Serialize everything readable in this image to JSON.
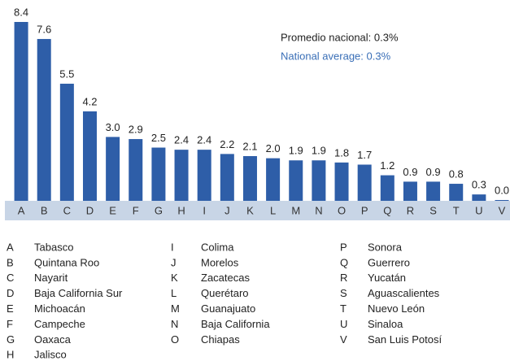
{
  "chart_data": {
    "type": "bar",
    "categories": [
      "A",
      "B",
      "C",
      "D",
      "E",
      "F",
      "G",
      "H",
      "I",
      "J",
      "K",
      "L",
      "M",
      "N",
      "O",
      "P",
      "Q",
      "R",
      "S",
      "T",
      "U",
      "V"
    ],
    "values": [
      8.4,
      7.6,
      5.5,
      4.2,
      3.0,
      2.9,
      2.5,
      2.4,
      2.4,
      2.2,
      2.1,
      2.0,
      1.9,
      1.9,
      1.8,
      1.7,
      1.2,
      0.9,
      0.9,
      0.8,
      0.3,
      0.0
    ],
    "value_labels": [
      "8.4",
      "7.6",
      "5.5",
      "4.2",
      "3.0",
      "2.9",
      "2.5",
      "2.4",
      "2.4",
      "2.2",
      "2.1",
      "2.0",
      "1.9",
      "1.9",
      "1.8",
      "1.7",
      "1.2",
      "0.9",
      "0.9",
      "0.8",
      "0.3",
      "0.0"
    ],
    "color": "#2e5ea8",
    "annotations": [
      "Promedio nacional: 0.3%",
      "National average: 0.3%"
    ],
    "key_labels": [
      "Tabasco",
      "Quintana Roo",
      "Nayarit",
      "Baja California Sur",
      "Michoacán",
      "Campeche",
      "Oaxaca",
      "Jalisco",
      "Colima",
      "Morelos",
      "Zacatecas",
      "Querétaro",
      "Guanajuato",
      "Baja California",
      "Chiapas",
      "Sonora",
      "Guerrero",
      "Yucatán",
      "Aguascalientes",
      "Nuevo León",
      "Sinaloa",
      "San Luis Potosí"
    ]
  }
}
